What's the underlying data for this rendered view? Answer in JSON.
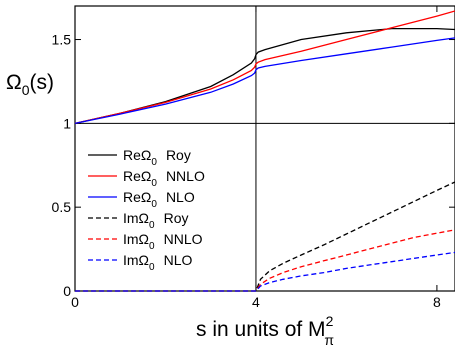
{
  "chart_data": {
    "type": "line",
    "xlabel_main": "s in units of M",
    "xlabel_sup": "2",
    "xlabel_sub": "π",
    "ylabel_main": "Ω",
    "ylabel_sub": "0",
    "ylabel_tail": "(s)",
    "xlim": [
      0,
      8.4
    ],
    "ylim": [
      0,
      1.7
    ],
    "xticks": [
      {
        "value": 0,
        "label": "0"
      },
      {
        "value": 4,
        "label": "4"
      },
      {
        "value": 8,
        "label": "8"
      }
    ],
    "yticks": [
      {
        "value": 0,
        "label": "0"
      },
      {
        "value": 0.5,
        "label": "0.5"
      },
      {
        "value": 1,
        "label": "1"
      },
      {
        "value": 1.5,
        "label": "1.5"
      }
    ],
    "reference_lines": {
      "vertical_x": 4,
      "horizontal_y": 1
    },
    "legend_placement": "left-lower",
    "series": [
      {
        "pre": "Re",
        "sym": "Ω",
        "sub": "0",
        "tag": "Roy",
        "color": "#000000",
        "dashed": false,
        "x": [
          0,
          1,
          2,
          3,
          3.5,
          3.9,
          3.97,
          4,
          4.05,
          4.2,
          5,
          6,
          7,
          8,
          8.4
        ],
        "y": [
          1,
          1.06,
          1.13,
          1.22,
          1.29,
          1.36,
          1.385,
          1.41,
          1.425,
          1.44,
          1.5,
          1.54,
          1.565,
          1.565,
          1.56
        ]
      },
      {
        "pre": "Re",
        "sym": "Ω",
        "sub": "0",
        "tag": "NNLO",
        "color": "#ff0000",
        "dashed": false,
        "x": [
          0,
          1,
          2,
          3,
          3.5,
          3.9,
          3.97,
          4,
          4.05,
          4.2,
          5,
          6,
          7,
          8,
          8.4
        ],
        "y": [
          1,
          1.06,
          1.125,
          1.205,
          1.26,
          1.315,
          1.335,
          1.355,
          1.365,
          1.38,
          1.43,
          1.5,
          1.57,
          1.64,
          1.67
        ]
      },
      {
        "pre": "Re",
        "sym": "Ω",
        "sub": "0",
        "tag": "NLO",
        "color": "#0000ff",
        "dashed": false,
        "x": [
          0,
          1,
          2,
          3,
          3.5,
          3.9,
          3.97,
          4,
          4.05,
          4.2,
          5,
          6,
          7,
          8,
          8.4
        ],
        "y": [
          1,
          1.055,
          1.115,
          1.185,
          1.235,
          1.285,
          1.3,
          1.32,
          1.33,
          1.34,
          1.375,
          1.415,
          1.455,
          1.495,
          1.51
        ]
      },
      {
        "pre": "Im",
        "sym": "Ω",
        "sub": "0",
        "tag": "Roy",
        "color": "#000000",
        "dashed": true,
        "x": [
          0,
          4,
          4.1,
          4.3,
          4.6,
          5,
          5.5,
          6,
          6.5,
          7,
          7.5,
          8,
          8.4
        ],
        "y": [
          0,
          0,
          0.07,
          0.12,
          0.165,
          0.215,
          0.275,
          0.34,
          0.405,
          0.47,
          0.535,
          0.6,
          0.65
        ]
      },
      {
        "pre": "Im",
        "sym": "Ω",
        "sub": "0",
        "tag": "NNLO",
        "color": "#ff0000",
        "dashed": true,
        "x": [
          0,
          4,
          4.1,
          4.3,
          4.6,
          5,
          5.5,
          6,
          6.5,
          7,
          7.5,
          8,
          8.4
        ],
        "y": [
          0,
          0,
          0.04,
          0.075,
          0.11,
          0.145,
          0.18,
          0.215,
          0.25,
          0.285,
          0.32,
          0.345,
          0.365
        ]
      },
      {
        "pre": "Im",
        "sym": "Ω",
        "sub": "0",
        "tag": "NLO",
        "color": "#0000ff",
        "dashed": true,
        "x": [
          0,
          4,
          4.1,
          4.3,
          4.6,
          5,
          5.5,
          6,
          6.5,
          7,
          7.5,
          8,
          8.4
        ],
        "y": [
          0,
          0,
          0.03,
          0.05,
          0.07,
          0.09,
          0.11,
          0.135,
          0.155,
          0.175,
          0.195,
          0.215,
          0.23
        ]
      }
    ]
  }
}
